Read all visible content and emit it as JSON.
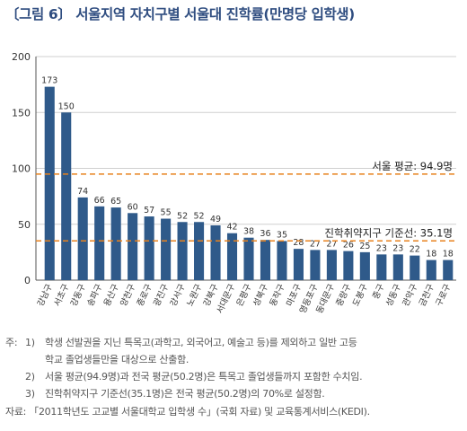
{
  "title": "〔그림 6〕 서울지역 자치구별 서울대 진학률(만명당 입학생)",
  "chart_data": {
    "type": "bar",
    "categories": [
      "강남구",
      "서초구",
      "강동구",
      "송파구",
      "용산구",
      "양천구",
      "종로구",
      "광진구",
      "강서구",
      "노원구",
      "강북구",
      "서대문구",
      "은평구",
      "성북구",
      "동작구",
      "마포구",
      "영등포구",
      "동대문구",
      "중랑구",
      "도봉구",
      "중구",
      "성동구",
      "관악구",
      "금천구",
      "구로구"
    ],
    "values": [
      173,
      150,
      74,
      66,
      65,
      60,
      57,
      55,
      52,
      52,
      49,
      42,
      38,
      36,
      35,
      28,
      27,
      27,
      26,
      25,
      23,
      23,
      22,
      18,
      18
    ],
    "ylim": [
      0,
      200
    ],
    "yticks": [
      0,
      50,
      100,
      150,
      200
    ],
    "grid": true,
    "bar_color": "#2f5a8a",
    "reference_lines": [
      {
        "label": "서울 평균: 94.9명",
        "value": 94.9,
        "color": "#e8821e"
      },
      {
        "label": "진학취약지구 기준선: 35.1명",
        "value": 35.1,
        "color": "#e8821e"
      }
    ]
  },
  "notes": {
    "lead": "주:",
    "items": [
      {
        "num": "1)",
        "line1": "학생 선발권을 지닌 특목고(과학고, 외국어고, 예술고 등)를 제외하고 일반 고등",
        "line2": "학교 졸업생들만을 대상으로 산출함."
      },
      {
        "num": "2)",
        "line1": "서울 평균(94.9명)과 전국 평균(50.2명)은 특목고 졸업생들까지 포함한 수치임."
      },
      {
        "num": "3)",
        "line1": "진학취약지구 기준선(35.1명)은 전국 평균(50.2명)의 70%로 설정함."
      }
    ],
    "source": "자료: 「2011학년도 고교별 서울대학교 입학생 수」(국회 자료) 및 교육통계서비스(KEDI)."
  }
}
